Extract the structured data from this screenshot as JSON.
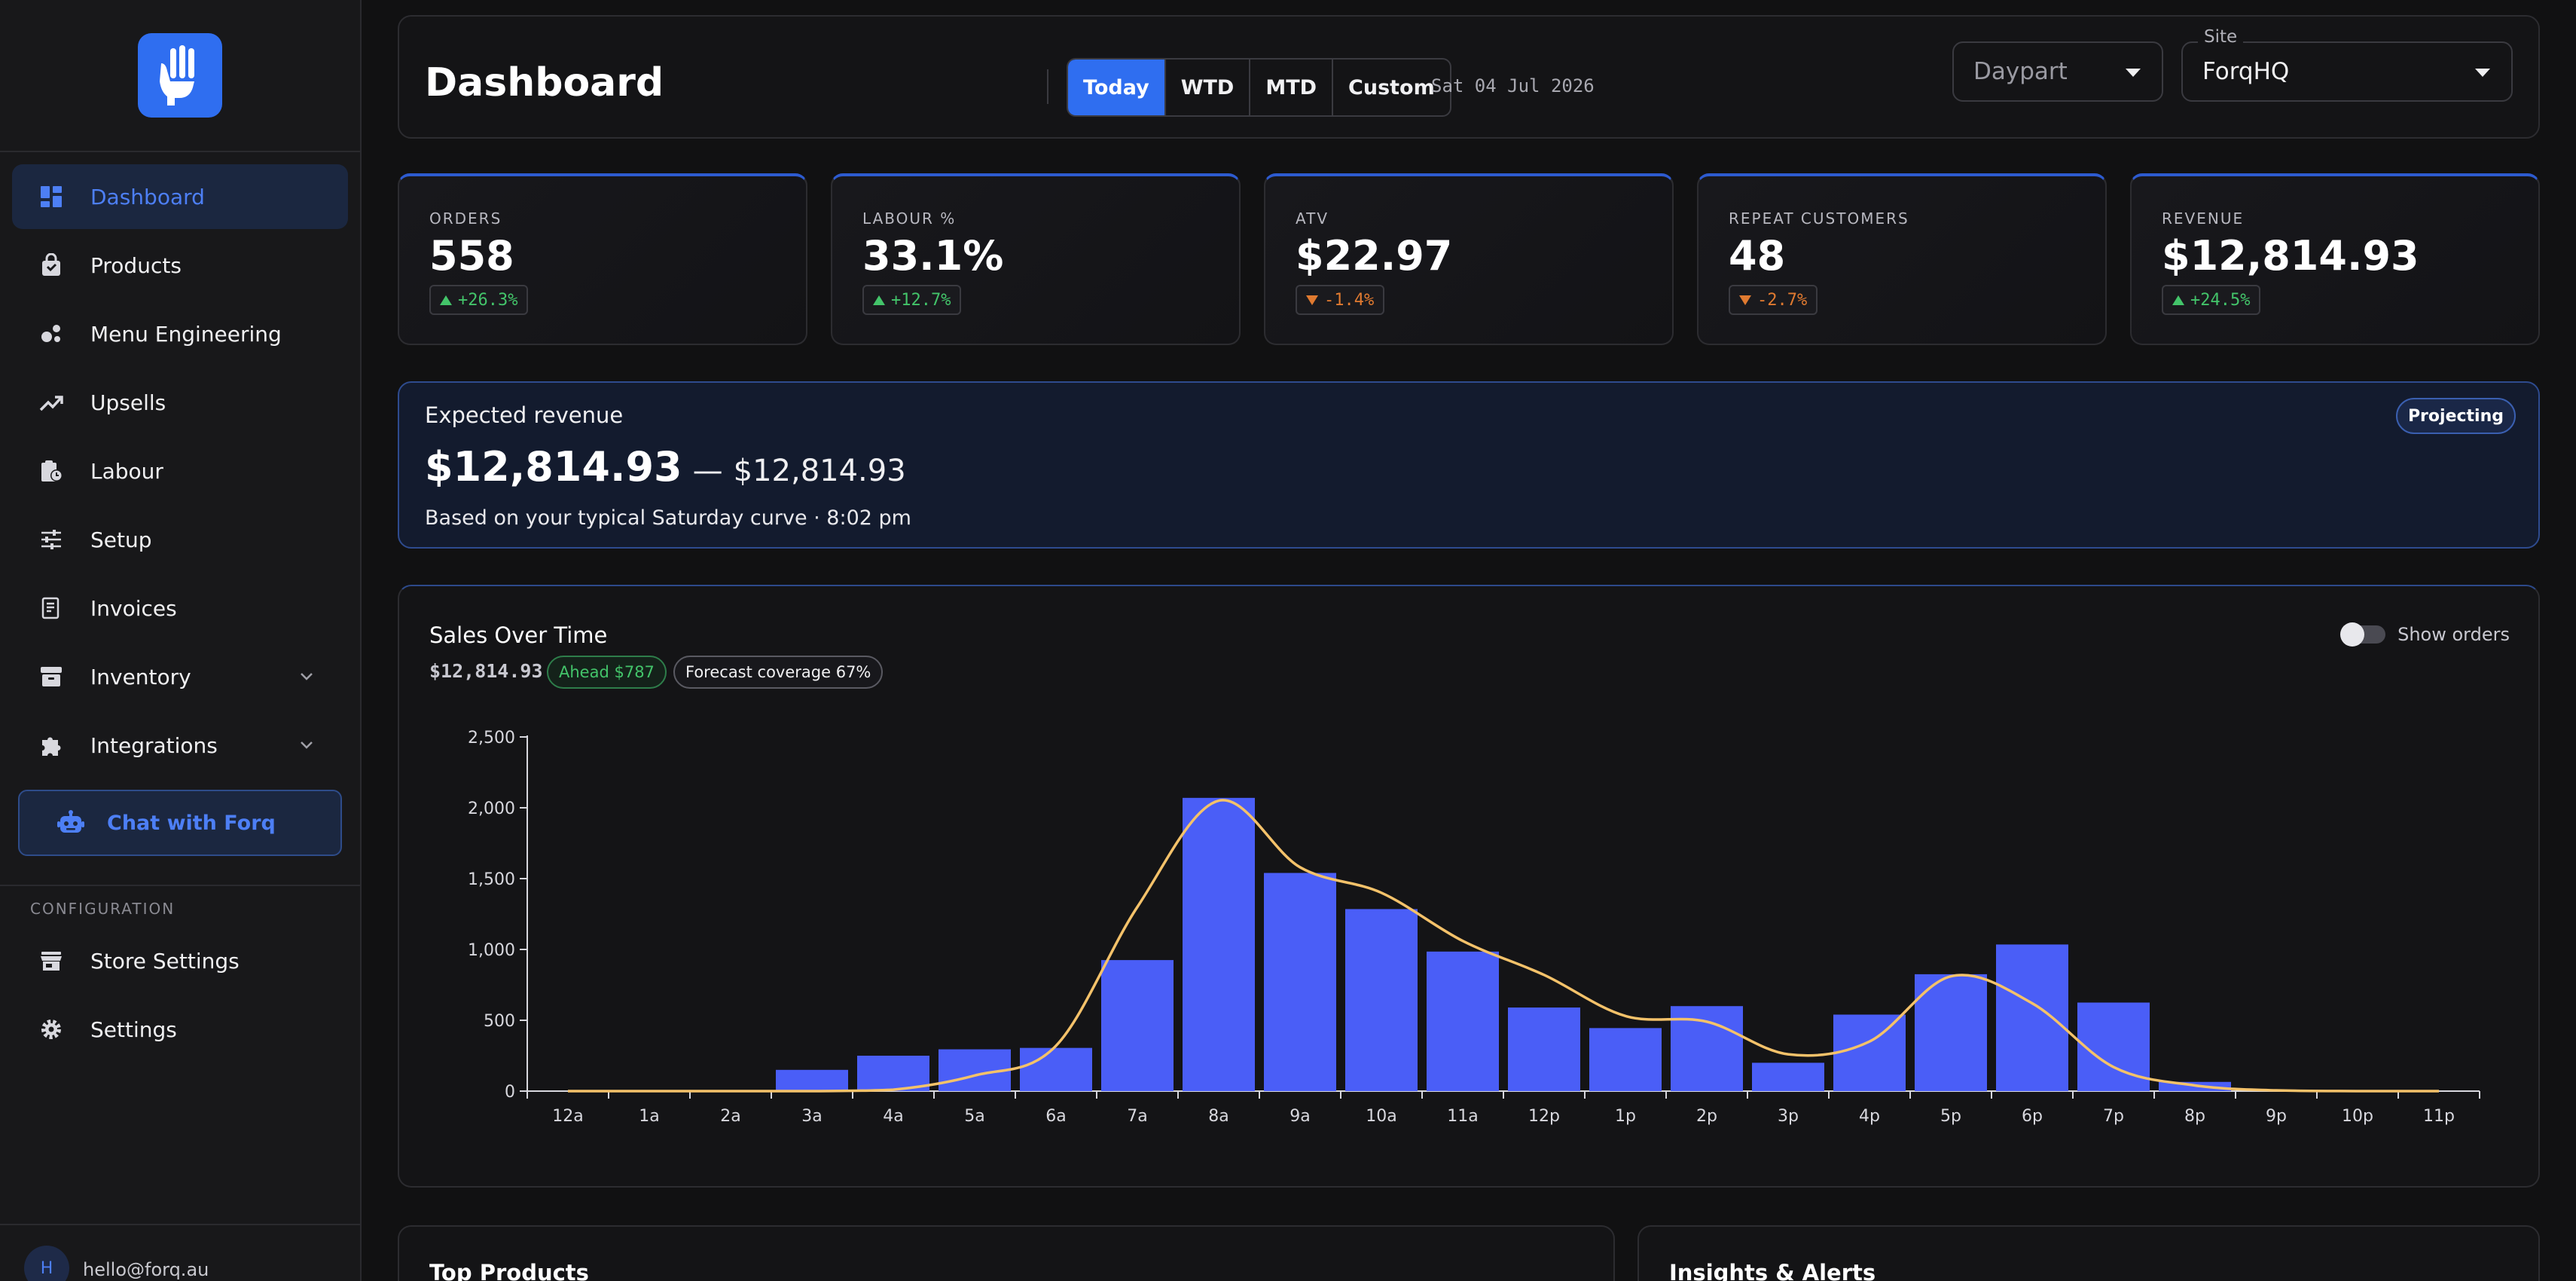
{
  "sidebar": {
    "nav": [
      {
        "label": "Dashboard",
        "icon": "dashboard-icon",
        "active": true
      },
      {
        "label": "Products",
        "icon": "shopping-bag-icon"
      },
      {
        "label": "Menu Engineering",
        "icon": "scatter-icon"
      },
      {
        "label": "Upsells",
        "icon": "trending-up-icon"
      },
      {
        "label": "Labour",
        "icon": "clipboard-clock-icon"
      },
      {
        "label": "Setup",
        "icon": "sliders-icon"
      },
      {
        "label": "Invoices",
        "icon": "receipt-icon"
      },
      {
        "label": "Inventory",
        "icon": "archive-icon",
        "expandable": true
      },
      {
        "label": "Integrations",
        "icon": "puzzle-icon",
        "expandable": true
      }
    ],
    "chat_label": "Chat with Forq",
    "config_title": "CONFIGURATION",
    "config_items": [
      {
        "label": "Store Settings",
        "icon": "store-icon"
      },
      {
        "label": "Settings",
        "icon": "gear-icon"
      }
    ],
    "user": {
      "initial": "H",
      "email": "hello@forq.au"
    }
  },
  "header": {
    "title": "Dashboard",
    "ranges": [
      "Today",
      "WTD",
      "MTD",
      "Custom"
    ],
    "active_range": "Today",
    "date": "Sat 04 Jul 2026",
    "daypart_placeholder": "Daypart",
    "site_label": "Site",
    "site_value": "ForqHQ"
  },
  "kpis": [
    {
      "label": "ORDERS",
      "value": "558",
      "change": "+26.3%",
      "direction": "up"
    },
    {
      "label": "LABOUR %",
      "value": "33.1%",
      "change": "+12.7%",
      "direction": "up"
    },
    {
      "label": "ATV",
      "value": "$22.97",
      "change": "-1.4%",
      "direction": "down"
    },
    {
      "label": "REPEAT CUSTOMERS",
      "value": "48",
      "change": "-2.7%",
      "direction": "down"
    },
    {
      "label": "REVENUE",
      "value": "$12,814.93",
      "change": "+24.5%",
      "direction": "up"
    }
  ],
  "expected": {
    "title": "Expected revenue",
    "main": "$12,814.93",
    "dash": "—",
    "alt": "$12,814.93",
    "note": "Based on your typical Saturday curve · 8:02 pm",
    "badge": "Projecting"
  },
  "sales": {
    "title": "Sales Over Time",
    "total": "$12,814.93",
    "ahead": "Ahead $787",
    "coverage": "Forecast coverage 67%",
    "toggle_label": "Show orders"
  },
  "chart_data": {
    "type": "bar",
    "categories": [
      "12a",
      "1a",
      "2a",
      "3a",
      "4a",
      "5a",
      "6a",
      "7a",
      "8a",
      "9a",
      "10a",
      "11a",
      "12p",
      "1p",
      "2p",
      "3p",
      "4p",
      "5p",
      "6p",
      "7p",
      "8p",
      "9p",
      "10p",
      "11p"
    ],
    "series": [
      {
        "values": [
          0,
          0,
          0,
          150,
          250,
          295,
          305,
          925,
          2070,
          1540,
          1285,
          985,
          590,
          445,
          600,
          200,
          540,
          825,
          1035,
          625,
          65,
          0,
          0,
          0
        ]
      },
      {
        "type": "line",
        "values": [
          0,
          0,
          0,
          0,
          10,
          110,
          320,
          1300,
          2050,
          1580,
          1400,
          1060,
          820,
          530,
          490,
          260,
          350,
          810,
          620,
          170,
          40,
          5,
          0,
          0
        ]
      }
    ],
    "colors": {
      "bars": "#4a5ef7",
      "line": "#f4c26a"
    },
    "ylim": [
      0,
      2500
    ],
    "yticks": [
      "0",
      "500",
      "1,000",
      "1,500",
      "2,000",
      "2,500"
    ],
    "grid": false,
    "xlabel": "",
    "ylabel": ""
  },
  "bottom": {
    "top_products": "Top Products",
    "insights": "Insights & Alerts"
  },
  "colors": {
    "accent": "#2f6ef0",
    "up": "#43c46a",
    "down": "#e07a30",
    "background": "#111112"
  }
}
